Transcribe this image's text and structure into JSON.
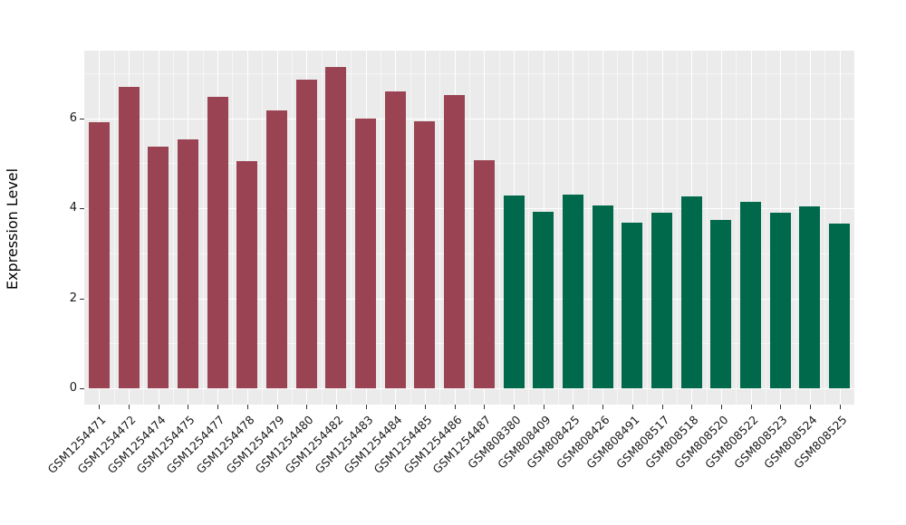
{
  "figure": {
    "background_color": "#FFFFFF",
    "panel_background_color": "#EBEBEB",
    "gridline_color": "#FFFFFF",
    "tick_color": "#333333"
  },
  "chart_data": {
    "type": "bar",
    "title": "",
    "xlabel": "",
    "ylabel": "Expression Level",
    "ylim": [
      -0.36,
      7.5
    ],
    "yticks": [
      0,
      2,
      4,
      6
    ],
    "yticks_minor": [
      1,
      3,
      5,
      7
    ],
    "grid": true,
    "legend_position": "none",
    "categories": [
      "GSM1254471",
      "GSM1254472",
      "GSM1254474",
      "GSM1254475",
      "GSM1254477",
      "GSM1254478",
      "GSM1254479",
      "GSM1254480",
      "GSM1254482",
      "GSM1254483",
      "GSM1254484",
      "GSM1254485",
      "GSM1254486",
      "GSM1254487",
      "GSM808380",
      "GSM808409",
      "GSM808425",
      "GSM808426",
      "GSM808491",
      "GSM808517",
      "GSM808518",
      "GSM808520",
      "GSM808522",
      "GSM808523",
      "GSM808524",
      "GSM808525"
    ],
    "values": [
      5.9,
      6.7,
      5.37,
      5.52,
      6.47,
      5.05,
      6.18,
      6.85,
      7.14,
      6.0,
      6.59,
      5.93,
      6.51,
      5.06,
      4.29,
      3.92,
      4.31,
      4.07,
      3.67,
      3.89,
      4.27,
      3.73,
      4.14,
      3.9,
      4.05,
      3.65
    ],
    "groups": [
      0,
      0,
      0,
      0,
      0,
      0,
      0,
      0,
      0,
      0,
      0,
      0,
      0,
      0,
      1,
      1,
      1,
      1,
      1,
      1,
      1,
      1,
      1,
      1,
      1,
      1
    ],
    "group_colors": [
      "#9A4453",
      "#00694B"
    ]
  }
}
